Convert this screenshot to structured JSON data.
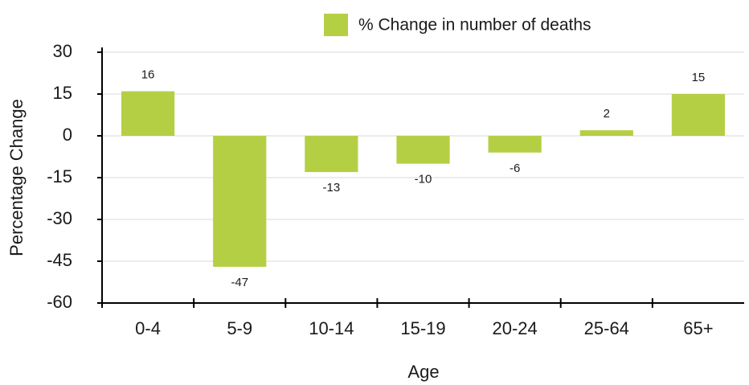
{
  "chart_data": {
    "type": "bar",
    "legend": "% Change in number of deaths",
    "x_label": "Age",
    "y_label": "Percentage Change",
    "categories": [
      "0-4",
      "5-9",
      "10-14",
      "15-19",
      "20-24",
      "25-64",
      "65+"
    ],
    "values": [
      16,
      -47,
      -13,
      -10,
      -6,
      2,
      15
    ],
    "color": "#b5cf45",
    "ylim": [
      -60,
      30
    ],
    "yticks": [
      -60,
      -45,
      -30,
      -15,
      0,
      15,
      30
    ],
    "grid": true
  }
}
